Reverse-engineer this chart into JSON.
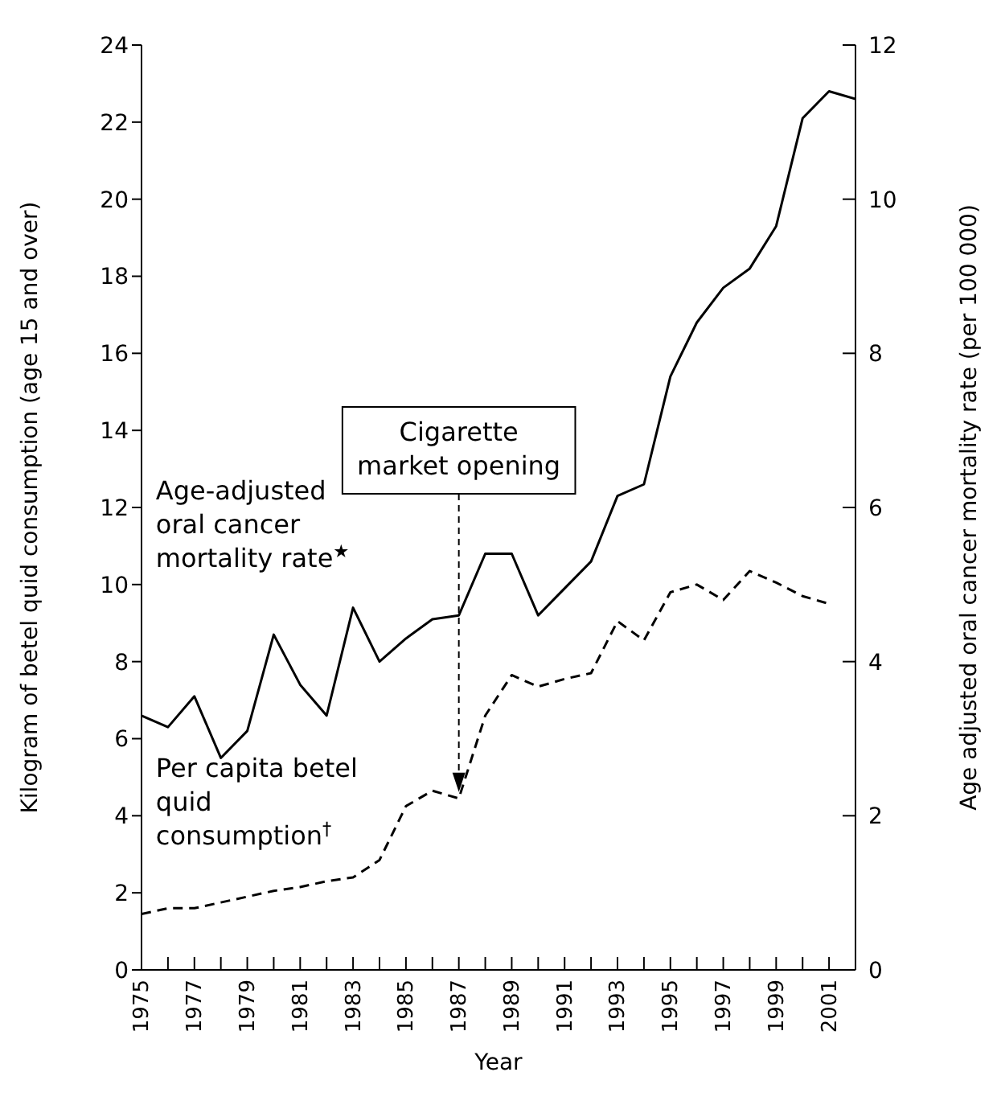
{
  "chart_data": {
    "type": "line",
    "xlabel": "Year",
    "ylabel": "Kilogram of betel quid consumption (age 15 and over)",
    "y2label": "Age adjusted oral cancer mortality rate (per 100 000)",
    "x": [
      1975,
      1976,
      1977,
      1978,
      1979,
      1980,
      1981,
      1982,
      1983,
      1984,
      1985,
      1986,
      1987,
      1988,
      1989,
      1990,
      1991,
      1992,
      1993,
      1994,
      1995,
      1996,
      1997,
      1998,
      1999,
      2000,
      2001,
      2002
    ],
    "series": [
      {
        "name": "Age-adjusted oral cancer mortality rate$^{★}$",
        "color": "#000000",
        "axis": "y2",
        "line_style": "solid",
        "values": [
          3.3,
          3.15,
          3.55,
          2.75,
          3.1,
          4.35,
          3.7,
          3.3,
          4.7,
          4.0,
          4.3,
          4.55,
          4.6,
          5.4,
          5.4,
          4.6,
          4.95,
          5.3,
          6.15,
          6.3,
          7.7,
          8.4,
          8.85,
          9.1,
          9.65,
          11.05,
          11.4,
          11.3
        ]
      },
      {
        "name": "Per capita betel quid consumption$^{†}$",
        "color": "#000000",
        "line_style": "dashed",
        "values": [
          1.45,
          1.6,
          1.6,
          1.75,
          1.9,
          2.05,
          2.15,
          2.3,
          2.4,
          2.85,
          4.25,
          4.65,
          4.45,
          6.6,
          7.65,
          7.35,
          7.55,
          7.7,
          9.05,
          8.55,
          9.8,
          10.0,
          9.6,
          10.35,
          10.05,
          9.7,
          9.5,
          null
        ]
      }
    ],
    "xlim": [
      1975,
      2002
    ],
    "xticks": [
      1975,
      {
        "value": 1976,
        "label": null
      },
      1977,
      {
        "value": 1978,
        "label": null
      },
      1979,
      {
        "value": 1980,
        "label": null
      },
      1981,
      {
        "value": 1982,
        "label": null
      },
      1983,
      {
        "value": 1984,
        "label": null
      },
      1985,
      {
        "value": 1986,
        "label": null
      },
      1987,
      {
        "value": 1988,
        "label": null
      },
      1989,
      {
        "value": 1990,
        "label": null
      },
      1991,
      {
        "value": 1992,
        "label": null
      },
      1993,
      {
        "value": 1994,
        "label": null
      },
      1995,
      {
        "value": 1996,
        "label": null
      },
      1997,
      {
        "value": 1998,
        "label": null
      },
      1999,
      {
        "value": 2000,
        "label": null
      },
      2001,
      {
        "value": 2002,
        "label": null
      }
    ],
    "ylim": [
      0,
      24
    ],
    "yticks": [
      0,
      2,
      4,
      6,
      8,
      10,
      12,
      14,
      16,
      18,
      20,
      22,
      24
    ],
    "y2lim": [
      0,
      12
    ],
    "y2ticks": [
      0,
      2,
      4,
      6,
      8,
      10,
      12
    ],
    "annotations": [
      {
        "text": "Cigarette market opening",
        "x": 1987
      }
    ],
    "marker": "none"
  }
}
